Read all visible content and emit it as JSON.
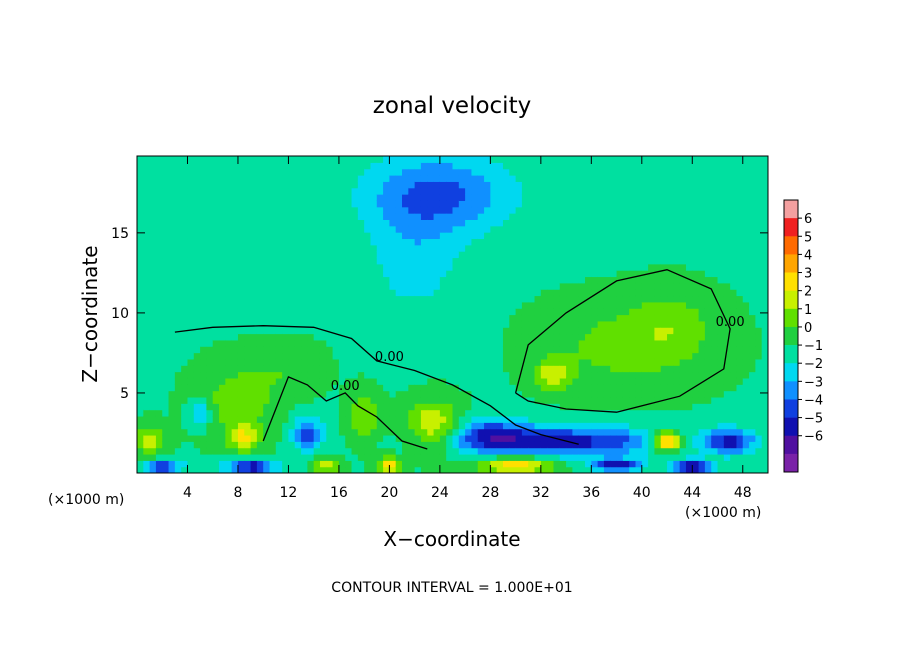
{
  "chart_data": {
    "type": "heatmap",
    "title": "zonal velocity",
    "xlabel": "X−coordinate",
    "ylabel": "Z−coordinate",
    "x_unit_left": "(×1000 m)",
    "x_unit_right": "(×1000 m)",
    "footer": "CONTOUR INTERVAL = 1.000E+01",
    "xlim": [
      0,
      50
    ],
    "ylim": [
      0,
      19.8
    ],
    "x_ticks": [
      4,
      8,
      12,
      16,
      20,
      24,
      28,
      32,
      36,
      40,
      44,
      48
    ],
    "y_ticks": [
      5,
      10,
      15
    ],
    "colorbar": {
      "ticks": [
        "6",
        "5",
        "4",
        "3",
        "2",
        "1",
        "0",
        "−1",
        "−2",
        "−3",
        "−4",
        "−5",
        "−6"
      ],
      "colors": [
        "#f4a0a0",
        "#f02020",
        "#ff6a00",
        "#ffa500",
        "#ffe000",
        "#c8f000",
        "#60e000",
        "#20d040",
        "#00e0a0",
        "#00d8f0",
        "#1090ff",
        "#1040e0",
        "#1010b0",
        "#5010a0",
        "#7a22a8"
      ]
    },
    "contour_labels": [
      "0.00",
      "0.00",
      "0.00"
    ],
    "background_value": -0.5,
    "features": [
      {
        "x": 24,
        "z": 17.5,
        "value": -2.6,
        "sx": 6,
        "sz": 2.5
      },
      {
        "x": 22,
        "z": 13.5,
        "value": -1.2,
        "sx": 4,
        "sz": 4
      },
      {
        "x": 39,
        "z": 8,
        "value": 1.4,
        "sx": 6,
        "sz": 2.5
      },
      {
        "x": 33,
        "z": 6.2,
        "value": 2.2,
        "sx": 1.5,
        "sz": 1.0
      },
      {
        "x": 42.5,
        "z": 9.5,
        "value": 1.0,
        "sx": 3,
        "sz": 2
      },
      {
        "x": 8,
        "z": 4.5,
        "value": 1.5,
        "sx": 3,
        "sz": 2.2
      },
      {
        "x": 8.5,
        "z": 2.2,
        "value": 2.6,
        "sx": 1.2,
        "sz": 0.8
      },
      {
        "x": 12,
        "z": 6.5,
        "value": 0.8,
        "sx": 2.5,
        "sz": 1.5
      },
      {
        "x": 13.5,
        "z": 2.5,
        "value": -3.0,
        "sx": 1.2,
        "sz": 1.0
      },
      {
        "x": 18,
        "z": 3.5,
        "value": 1.8,
        "sx": 1.2,
        "sz": 1.5
      },
      {
        "x": 23.5,
        "z": 3,
        "value": 2.8,
        "sx": 2,
        "sz": 1.5
      },
      {
        "x": 5,
        "z": 3.7,
        "value": -2.2,
        "sx": 0.8,
        "sz": 0.8
      },
      {
        "x": 1,
        "z": 2,
        "value": 2.0,
        "sx": 1.2,
        "sz": 1.0
      },
      {
        "x": 34,
        "z": 2,
        "value": -3.8,
        "sx": 8,
        "sz": 0.9
      },
      {
        "x": 28,
        "z": 2.5,
        "value": -2.5,
        "sx": 3,
        "sz": 1.0
      },
      {
        "x": 42,
        "z": 2,
        "value": 5.0,
        "sx": 1.2,
        "sz": 0.6
      },
      {
        "x": 47,
        "z": 2,
        "value": -3.5,
        "sx": 2,
        "sz": 0.8
      },
      {
        "x": 30,
        "z": 0.5,
        "value": 3.5,
        "sx": 3,
        "sz": 0.5
      },
      {
        "x": 20,
        "z": 0.5,
        "value": 3.0,
        "sx": 1,
        "sz": 0.5
      },
      {
        "x": 9,
        "z": 0.4,
        "value": -4.5,
        "sx": 2,
        "sz": 0.4
      },
      {
        "x": 2,
        "z": 0.4,
        "value": -4.0,
        "sx": 1.5,
        "sz": 0.4
      },
      {
        "x": 15,
        "z": 0.5,
        "value": 3.0,
        "sx": 1,
        "sz": 0.4
      },
      {
        "x": 38,
        "z": 0.5,
        "value": -4.0,
        "sx": 2,
        "sz": 0.4
      },
      {
        "x": 44,
        "z": 0.4,
        "value": -5.0,
        "sx": 1.5,
        "sz": 0.4
      }
    ],
    "contours": [
      {
        "label_index": 0,
        "points": [
          [
            3,
            8.8
          ],
          [
            6,
            9.1
          ],
          [
            10,
            9.2
          ],
          [
            14,
            9.1
          ],
          [
            17,
            8.4
          ],
          [
            19,
            7
          ],
          [
            20,
            6.8
          ],
          [
            22,
            6.4
          ],
          [
            25,
            5.5
          ],
          [
            28,
            4.2
          ],
          [
            30,
            3
          ],
          [
            32,
            2.4
          ],
          [
            35,
            1.8
          ]
        ]
      },
      {
        "label_index": 1,
        "points": [
          [
            30,
            5
          ],
          [
            31,
            8
          ],
          [
            34,
            10
          ],
          [
            38,
            12
          ],
          [
            42,
            12.7
          ],
          [
            45.5,
            11.5
          ],
          [
            47,
            9
          ],
          [
            46.5,
            6.5
          ],
          [
            43,
            4.8
          ],
          [
            38,
            3.8
          ],
          [
            34,
            4
          ],
          [
            31,
            4.5
          ],
          [
            30,
            5
          ]
        ]
      },
      {
        "label_index": 2,
        "points": [
          [
            10,
            2
          ],
          [
            11,
            4
          ],
          [
            12,
            6
          ],
          [
            13.5,
            5.5
          ],
          [
            15,
            4.5
          ],
          [
            16.5,
            5
          ],
          [
            17.5,
            4.2
          ],
          [
            19,
            3.5
          ],
          [
            21,
            2
          ],
          [
            23,
            1.5
          ]
        ]
      }
    ]
  }
}
